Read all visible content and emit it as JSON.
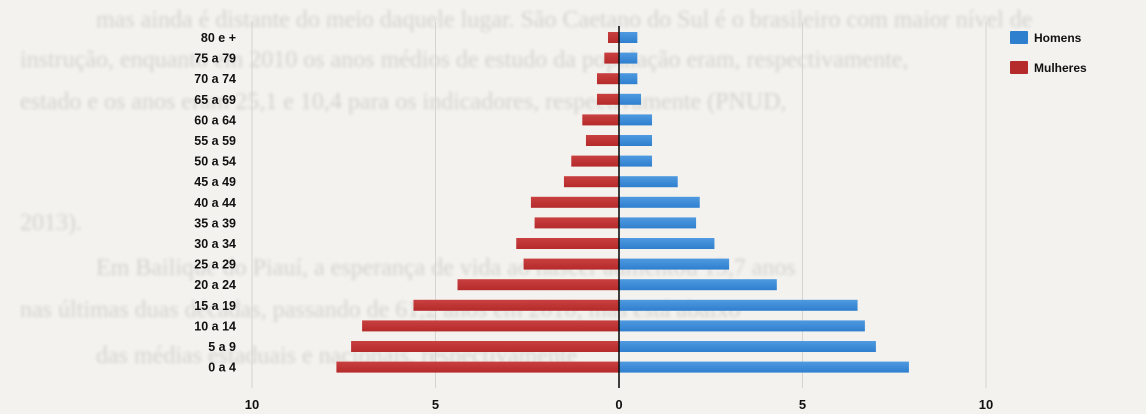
{
  "background_text": [
    "mas ainda é distante do meio daquele lugar. São Caetano do Sul é o brasileiro com maior nível de",
    "instrução, enquanto em 2010 os anos médios de estudo da população eram, respectivamente,",
    "estado e os anos eram 25,1 e 10,4 para os indicadores, respectivamente (PNUD,",
    "2013).",
    "Em Bailique do Piauí, a esperança de vida ao nascer aumentou 13,7 anos",
    "nas últimas duas décadas, passando de 61,2 anos em 2010, mas está abaixo",
    "das médias estaduais e nacionais, respectivamente"
  ],
  "chart_data": {
    "type": "bar",
    "orientation": "horizontal",
    "subtype": "population-pyramid",
    "categories": [
      "0 a 4",
      "5 a 9",
      "10 a 14",
      "15 a 19",
      "20 a 24",
      "25 a 29",
      "30 a 34",
      "35 a 39",
      "40 a 44",
      "45 a 49",
      "50 a 54",
      "55 a 59",
      "60 a 64",
      "65 a 69",
      "70 a 74",
      "75 a 79",
      "80 e +"
    ],
    "series": [
      {
        "name": "Homens",
        "color": "#2f7fcf",
        "values": [
          7.9,
          7.0,
          6.7,
          6.5,
          4.3,
          3.0,
          2.6,
          2.1,
          2.2,
          1.6,
          0.9,
          0.9,
          0.9,
          0.6,
          0.5,
          0.5,
          0.5
        ]
      },
      {
        "name": "Mulheres",
        "color": "#b52a2a",
        "values": [
          7.7,
          7.3,
          7.0,
          5.6,
          4.4,
          2.6,
          2.8,
          2.3,
          2.4,
          1.5,
          1.3,
          0.9,
          1.0,
          0.6,
          0.6,
          0.4,
          0.3
        ]
      }
    ],
    "x_ticks": [
      "10",
      "5",
      "0",
      "5",
      "10"
    ],
    "xlim": [
      -10,
      10
    ],
    "legend_position": "top-right",
    "grid": true
  }
}
